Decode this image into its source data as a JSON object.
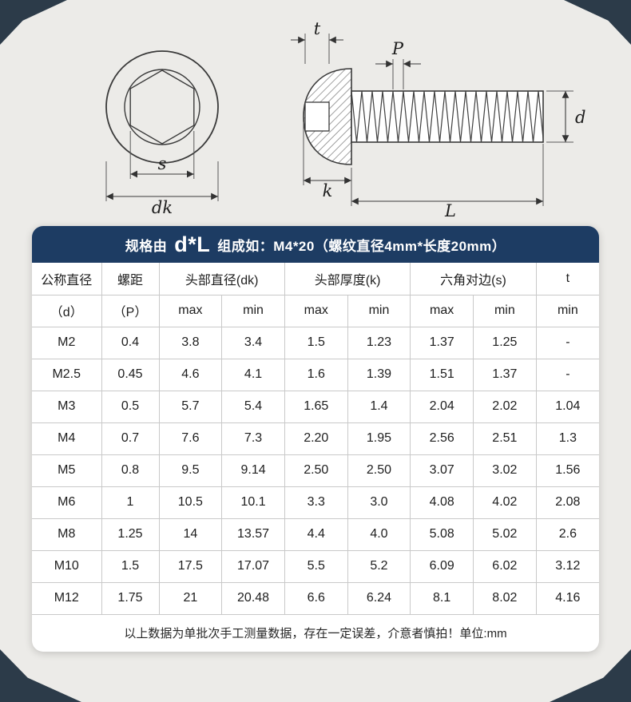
{
  "page": {
    "background_color": "#ecebe8",
    "accent_color": "#1d3c63",
    "corner_color": "#2c3b49",
    "grid_color": "#c9c9c9"
  },
  "diagram": {
    "front_labels": {
      "s": "s",
      "dk": "dk"
    },
    "side_labels": {
      "t": "t",
      "p": "P",
      "d": "d",
      "k": "k",
      "l": "L"
    }
  },
  "banner": {
    "prefix": "规格由",
    "formula": "d*L",
    "suffix": "组成如：M4*20（螺纹直径4mm*长度20mm）"
  },
  "table": {
    "header_row1": [
      "公称直径",
      "螺距",
      "头部直径(dk)",
      "头部厚度(k)",
      "六角对边(s)",
      "t"
    ],
    "header_row2": [
      "（d）",
      "（P）",
      "max",
      "min",
      "max",
      "min",
      "max",
      "min",
      "min"
    ],
    "rows": [
      [
        "M2",
        "0.4",
        "3.8",
        "3.4",
        "1.5",
        "1.23",
        "1.37",
        "1.25",
        "-"
      ],
      [
        "M2.5",
        "0.45",
        "4.6",
        "4.1",
        "1.6",
        "1.39",
        "1.51",
        "1.37",
        "-"
      ],
      [
        "M3",
        "0.5",
        "5.7",
        "5.4",
        "1.65",
        "1.4",
        "2.04",
        "2.02",
        "1.04"
      ],
      [
        "M4",
        "0.7",
        "7.6",
        "7.3",
        "2.20",
        "1.95",
        "2.56",
        "2.51",
        "1.3"
      ],
      [
        "M5",
        "0.8",
        "9.5",
        "9.14",
        "2.50",
        "2.50",
        "3.07",
        "3.02",
        "1.56"
      ],
      [
        "M6",
        "1",
        "10.5",
        "10.1",
        "3.3",
        "3.0",
        "4.08",
        "4.02",
        "2.08"
      ],
      [
        "M8",
        "1.25",
        "14",
        "13.57",
        "4.4",
        "4.0",
        "5.08",
        "5.02",
        "2.6"
      ],
      [
        "M10",
        "1.5",
        "17.5",
        "17.07",
        "5.5",
        "5.2",
        "6.09",
        "6.02",
        "3.12"
      ],
      [
        "M12",
        "1.75",
        "21",
        "20.48",
        "6.6",
        "6.24",
        "8.1",
        "8.02",
        "4.16"
      ]
    ]
  },
  "footer": {
    "note": "以上数据为单批次手工测量数据，存在一定误差，介意者慎拍！单位:mm"
  }
}
